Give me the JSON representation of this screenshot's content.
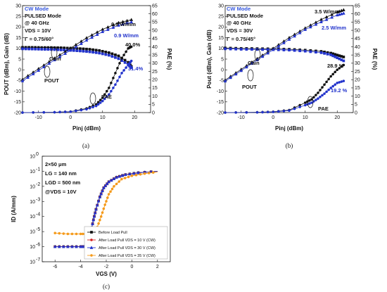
{
  "colors": {
    "black": "#111111",
    "blue": "#2233cc",
    "red": "#d42020",
    "orange": "#f59a1a",
    "mode_blue": "#3355dd"
  },
  "panels": [
    {
      "caption": "(a)",
      "ann": {
        "mode": "CW Mode",
        "pulsed": "PULSED Mode",
        "freq": "@ 40 GHz",
        "vds": "VDS = 10V",
        "gamma": "Γ = 0.75/60°",
        "pout_black": "0.9 W/mm",
        "pout_blue": "0.9 W/mm",
        "pae_black": "40.0%",
        "pae_blue": "31.4%",
        "gain": "Gain",
        "pout": "POUT",
        "pae": "PAE"
      }
    },
    {
      "caption": "(b)",
      "ann": {
        "mode": "CW Mode",
        "pulsed": "PULSED Mode",
        "freq": "@ 40 GHz",
        "vds": "VDS = 30V",
        "gamma": "Γ = 0.75/45°",
        "pout_black": "3.5 W/mm",
        "pout_blue": "2.5 W/mm",
        "pae_black": "28.9 %",
        "pae_blue": "19.2 %",
        "gain": "Gain",
        "pout": "POUT",
        "pae": "PAE"
      }
    },
    {
      "caption": "(c)",
      "ann": {
        "l1": "2×50 μm",
        "l2": "LG = 140 nm",
        "l3": "LGD = 500 nm",
        "l4": "@VDS = 10V"
      }
    }
  ],
  "chart_data": [
    {
      "type": "line",
      "xlabel": "Pinj (dBm)",
      "ylabel": "POUT (dBm), Gain (dB)",
      "ylabel2": "PAE (%)",
      "xlim": [
        -15,
        25
      ],
      "ylim": [
        -20,
        30
      ],
      "y2lim": [
        0,
        65
      ],
      "xticks": [
        -10,
        0,
        10,
        20
      ],
      "yticks": [
        -20,
        -15,
        -10,
        -5,
        0,
        5,
        10,
        15,
        20,
        25,
        30
      ],
      "y2ticks": [
        0,
        5,
        10,
        15,
        20,
        25,
        30,
        35,
        40,
        45,
        50,
        55,
        60,
        65
      ],
      "series": [
        {
          "kind": "gain",
          "color": "black",
          "marker": "square",
          "x": [
            -15,
            -12,
            -9,
            -6,
            -3,
            0,
            3,
            6,
            9,
            12,
            15,
            18,
            19
          ],
          "y": [
            10.5,
            10.5,
            10.4,
            10.4,
            10.3,
            10.1,
            9.9,
            9.6,
            9.0,
            8.0,
            6.5,
            3.5,
            1.6
          ]
        },
        {
          "kind": "gain",
          "color": "blue",
          "marker": "square",
          "x": [
            -15,
            -12,
            -9,
            -6,
            -3,
            0,
            3,
            6,
            9,
            12,
            15,
            18,
            19
          ],
          "y": [
            9.8,
            9.7,
            9.6,
            9.5,
            9.3,
            9.1,
            8.8,
            8.4,
            7.8,
            6.8,
            5.2,
            2.5,
            1.0
          ]
        },
        {
          "kind": "pout",
          "color": "black",
          "marker": "triangle",
          "x": [
            -15,
            -10,
            -5,
            0,
            5,
            10,
            15,
            19
          ],
          "y": [
            -4.5,
            0.5,
            5.4,
            10.1,
            14.9,
            18.9,
            22.0,
            23.4
          ]
        },
        {
          "kind": "pout",
          "color": "blue",
          "marker": "triangle",
          "x": [
            -15,
            -10,
            -5,
            0,
            5,
            10,
            15,
            19
          ],
          "y": [
            -5.2,
            -0.3,
            4.6,
            9.1,
            13.8,
            17.8,
            20.8,
            22.3
          ]
        },
        {
          "kind": "pae",
          "color": "black",
          "marker": "circle",
          "x": [
            -15,
            -5,
            0,
            5,
            8,
            10,
            12,
            14,
            16,
            18,
            19
          ],
          "y2": [
            0,
            0.2,
            0.6,
            2.5,
            5,
            9,
            15,
            24,
            33,
            39,
            40
          ]
        },
        {
          "kind": "pae",
          "color": "blue",
          "marker": "circle",
          "x": [
            -15,
            -5,
            0,
            5,
            8,
            10,
            12,
            14,
            16,
            18,
            19
          ],
          "y2": [
            0,
            0.2,
            0.5,
            2.0,
            4,
            7,
            11,
            17,
            24,
            29,
            31.4
          ]
        }
      ]
    },
    {
      "type": "line",
      "xlabel": "Pinj (dBm)",
      "ylabel": "Pout (dBm), Gain (dB)",
      "ylabel2": "PAE (%)",
      "xlim": [
        -15,
        25
      ],
      "ylim": [
        -20,
        30
      ],
      "y2lim": [
        0,
        65
      ],
      "xticks": [
        -10,
        0,
        10,
        20
      ],
      "yticks": [
        -20,
        -15,
        -10,
        -5,
        0,
        5,
        10,
        15,
        20,
        25,
        30
      ],
      "y2ticks": [
        0,
        5,
        10,
        15,
        20,
        25,
        30,
        35,
        40,
        45,
        50,
        55,
        60,
        65
      ],
      "series": [
        {
          "kind": "gain",
          "color": "black",
          "marker": "square",
          "x": [
            -15,
            -10,
            -5,
            0,
            5,
            10,
            15,
            18,
            20,
            22
          ],
          "y": [
            10.2,
            10.0,
            9.9,
            9.8,
            9.6,
            9.2,
            8.6,
            7.8,
            6.9,
            6.0
          ]
        },
        {
          "kind": "gain",
          "color": "blue",
          "marker": "square",
          "x": [
            -15,
            -10,
            -5,
            0,
            5,
            10,
            15,
            18,
            20,
            22
          ],
          "y": [
            9.8,
            9.6,
            9.5,
            9.4,
            9.2,
            8.7,
            8.0,
            7.0,
            5.6,
            4.2
          ]
        },
        {
          "kind": "pout",
          "color": "black",
          "marker": "triangle",
          "x": [
            -15,
            -10,
            -5,
            0,
            5,
            10,
            15,
            20,
            22
          ],
          "y": [
            -4.8,
            0.2,
            5.2,
            10.0,
            15.0,
            19.5,
            23.5,
            27.0,
            28.0
          ]
        },
        {
          "kind": "pout",
          "color": "blue",
          "marker": "triangle",
          "x": [
            -15,
            -10,
            -5,
            0,
            5,
            10,
            15,
            20,
            22
          ],
          "y": [
            -5.3,
            -0.4,
            4.6,
            9.4,
            14.2,
            18.8,
            22.4,
            25.6,
            26.4
          ]
        },
        {
          "kind": "pae",
          "color": "black",
          "marker": "circle",
          "x": [
            -15,
            -5,
            0,
            5,
            10,
            12,
            14,
            16,
            18,
            20,
            22
          ],
          "y2": [
            0,
            0.2,
            0.5,
            1.5,
            6,
            8,
            12,
            17,
            22,
            26,
            28.9
          ]
        },
        {
          "kind": "pae",
          "color": "blue",
          "marker": "circle",
          "x": [
            -15,
            -5,
            0,
            5,
            10,
            12,
            14,
            16,
            18,
            20,
            22
          ],
          "y2": [
            0,
            0.1,
            0.4,
            1.2,
            4.5,
            6,
            8.5,
            11.5,
            15,
            18,
            19.2
          ]
        }
      ]
    },
    {
      "type": "line",
      "xlabel": "VGS (V)",
      "ylabel": "ID (A/mm)",
      "xlim": [
        -7,
        3
      ],
      "ylim_exp": [
        -7,
        0
      ],
      "log_y": true,
      "xticks": [
        -6,
        -4,
        -2,
        0,
        2
      ],
      "yticks": [
        "10^0",
        "10^-1",
        "10^-2",
        "10^-3",
        "10^-4",
        "10^-5",
        "10^-6",
        "10^-7"
      ],
      "legend_position": "bottom-right",
      "series": [
        {
          "name": "Before Load Pull",
          "color": "black",
          "marker": "square",
          "x": [
            -6,
            -5,
            -4,
            -3.6,
            -3.4,
            -3.2,
            -3.0,
            -2.8,
            -2.5,
            -2.2,
            -1.8,
            -1.2,
            -0.5,
            0.5,
            2
          ],
          "y": [
            1e-06,
            1e-06,
            1e-06,
            1e-06,
            2e-06,
            1e-05,
            6e-05,
            0.0003,
            0.002,
            0.008,
            0.02,
            0.04,
            0.06,
            0.08,
            0.1
          ]
        },
        {
          "name": "After Load Pull VDS = 10 V (CW)",
          "color": "red",
          "marker": "circle",
          "x": [
            -6,
            -5,
            -4,
            -3.6,
            -3.4,
            -3.2,
            -3.0,
            -2.8,
            -2.5,
            -2.2,
            -1.8,
            -1.2,
            -0.5,
            0.5,
            2
          ],
          "y": [
            1e-06,
            1e-06,
            1e-06,
            1e-06,
            2e-06,
            1e-05,
            6e-05,
            0.0003,
            0.002,
            0.008,
            0.02,
            0.04,
            0.06,
            0.08,
            0.1
          ]
        },
        {
          "name": "After Load Pull VDS = 30 V (CW)",
          "color": "blue",
          "marker": "triangle",
          "x": [
            -6,
            -5,
            -4,
            -3.6,
            -3.4,
            -3.2,
            -3.0,
            -2.8,
            -2.5,
            -2.2,
            -1.8,
            -1.2,
            -0.5,
            0.5,
            2
          ],
          "y": [
            1e-06,
            1e-06,
            1e-06,
            1e-06,
            2e-06,
            1e-05,
            6e-05,
            0.0003,
            0.002,
            0.008,
            0.02,
            0.04,
            0.06,
            0.08,
            0.1
          ]
        },
        {
          "name": "After Load Pull VDS = 35 V (CW)",
          "color": "orange",
          "marker": "circle",
          "x": [
            -6,
            -5,
            -4,
            -3.5,
            -3.2,
            -3.0,
            -2.7,
            -2.4,
            -2.1,
            -1.8,
            -1.4,
            -0.8,
            0,
            1,
            2
          ],
          "y": [
            8e-06,
            7e-06,
            7e-06,
            7e-06,
            7e-06,
            7e-06,
            2e-05,
            0.0001,
            0.0006,
            0.003,
            0.01,
            0.03,
            0.05,
            0.07,
            0.09
          ]
        }
      ]
    }
  ]
}
